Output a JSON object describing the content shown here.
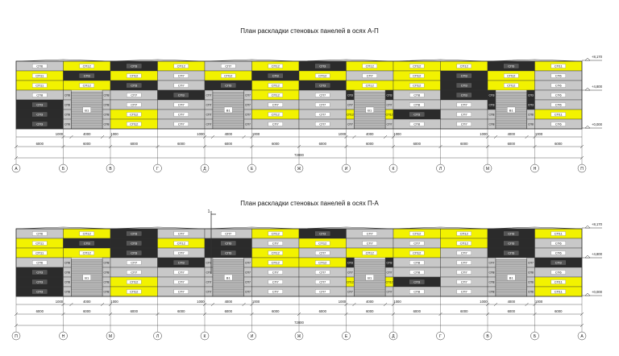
{
  "titles": {
    "top": "План раскладки стеновых панелей в осях А-П",
    "bottom": "План раскладки стеновых панелей в осях П-А"
  },
  "elevation_marks": [
    "+8,170",
    "+4,800",
    "+0,000"
  ],
  "total_length": "72000",
  "axes_top": [
    "А",
    "Б",
    "В",
    "Г",
    "Д",
    "Е",
    "Ж",
    "И",
    "К",
    "Л",
    "М",
    "Н",
    "П"
  ],
  "axes_bottom": [
    "П",
    "Н",
    "М",
    "Л",
    "К",
    "И",
    "Ж",
    "Е",
    "Д",
    "Г",
    "В",
    "Б",
    "А"
  ],
  "bay_dims": [
    "6000",
    "6000",
    "6000",
    "6000",
    "6000",
    "6000",
    "6000",
    "6000",
    "6000",
    "6000",
    "6000",
    "6000"
  ],
  "sub_dims": [
    "1000",
    "4000",
    "1000"
  ],
  "door_label": "В1",
  "section_mark": "1",
  "colors": {
    "yellow": "#f2f200",
    "black": "#2b2b2b",
    "gray": "#c8c8c8",
    "light": "#e6e6e6",
    "door": "#bdbdbd",
    "line": "#333333"
  },
  "top_upper_rows": [
    [
      {
        "t": "СП6",
        "c": "gray"
      },
      {
        "t": "СП12",
        "c": "yellow"
      },
      {
        "t": "СП3",
        "c": "black"
      },
      {
        "t": "СП12",
        "c": "yellow"
      },
      {
        "t": "СП7",
        "c": "gray"
      },
      {
        "t": "СП12",
        "c": "yellow"
      },
      {
        "t": "СП3",
        "c": "black"
      },
      {
        "t": "СП12",
        "c": "yellow"
      },
      {
        "t": "СП12",
        "c": "yellow"
      },
      {
        "t": "СП12",
        "c": "yellow"
      },
      {
        "t": "СП3",
        "c": "black"
      },
      {
        "t": "СП11",
        "c": "yellow"
      }
    ],
    [
      {
        "t": "СП11",
        "c": "yellow"
      },
      {
        "t": "СП3",
        "c": "black"
      },
      {
        "t": "СП12",
        "c": "yellow"
      },
      {
        "t": "СП7",
        "c": "gray"
      },
      {
        "t": "СП12",
        "c": "yellow"
      },
      {
        "t": "СП3",
        "c": "black"
      },
      {
        "t": "СП12",
        "c": "yellow"
      },
      {
        "t": "СП7",
        "c": "gray"
      },
      {
        "t": "СП12",
        "c": "yellow"
      },
      {
        "t": "СП3",
        "c": "black"
      },
      {
        "t": "СП12",
        "c": "yellow"
      },
      {
        "t": "СП6",
        "c": "gray"
      }
    ],
    [
      {
        "t": "СП11",
        "c": "yellow"
      },
      {
        "t": "СП12",
        "c": "yellow"
      },
      {
        "t": "СП3",
        "c": "black"
      },
      {
        "t": "СП7",
        "c": "gray"
      },
      {
        "t": "СП3",
        "c": "black"
      },
      {
        "t": "СП12",
        "c": "yellow"
      },
      {
        "t": "СП3",
        "c": "black"
      },
      {
        "t": "СП12",
        "c": "yellow"
      },
      {
        "t": "СП12",
        "c": "yellow"
      },
      {
        "t": "СП3",
        "c": "black"
      },
      {
        "t": "СП12",
        "c": "yellow"
      },
      {
        "t": "СП6",
        "c": "gray"
      }
    ]
  ],
  "top_lower_rows": [
    [
      {
        "t": "СП8",
        "c": "gray"
      },
      {
        "t": "СП8",
        "c": "gray"
      },
      {
        "t": "СП7",
        "c": "gray"
      },
      {
        "t": "СП3",
        "c": "black"
      },
      {
        "t": "СП7",
        "c": "gray"
      },
      {
        "t": "СП12",
        "c": "yellow"
      },
      {
        "t": "СП7",
        "c": "gray"
      },
      {
        "t": "СП3",
        "c": "black"
      },
      {
        "t": "СП8",
        "c": "gray"
      },
      {
        "t": "СП3",
        "c": "black"
      },
      {
        "t": "СП3",
        "c": "black"
      },
      {
        "t": "СП6",
        "c": "gray"
      }
    ],
    [
      {
        "t": "СП3",
        "c": "black"
      },
      {
        "t": "СП8",
        "c": "gray"
      },
      {
        "t": "СП7",
        "c": "gray"
      },
      {
        "t": "СП7",
        "c": "gray"
      },
      {
        "t": "СП7",
        "c": "gray"
      },
      {
        "t": "СП7",
        "c": "gray"
      },
      {
        "t": "СП7",
        "c": "gray"
      },
      {
        "t": "СП7",
        "c": "gray"
      },
      {
        "t": "СП8",
        "c": "gray"
      },
      {
        "t": "СП7",
        "c": "gray"
      },
      {
        "t": "СП3",
        "c": "black"
      },
      {
        "t": "СП6",
        "c": "gray"
      }
    ],
    [
      {
        "t": "СП3",
        "c": "black"
      },
      {
        "t": "СП8",
        "c": "gray"
      },
      {
        "t": "СП12",
        "c": "yellow"
      },
      {
        "t": "СП7",
        "c": "gray"
      },
      {
        "t": "СП7",
        "c": "gray"
      },
      {
        "t": "СП12",
        "c": "yellow"
      },
      {
        "t": "СП7",
        "c": "gray"
      },
      {
        "t": "СП12",
        "c": "yellow"
      },
      {
        "t": "СП3",
        "c": "black"
      },
      {
        "t": "СП7",
        "c": "gray"
      },
      {
        "t": "СП8",
        "c": "gray"
      },
      {
        "t": "СП11",
        "c": "yellow"
      }
    ],
    [
      {
        "t": "СП3",
        "c": "black"
      },
      {
        "t": "СП8",
        "c": "gray"
      },
      {
        "t": "СП12",
        "c": "yellow"
      },
      {
        "t": "СП7",
        "c": "gray"
      },
      {
        "t": "СП7",
        "c": "gray"
      },
      {
        "t": "СП7",
        "c": "gray"
      },
      {
        "t": "СП7",
        "c": "gray"
      },
      {
        "t": "СП7",
        "c": "gray"
      },
      {
        "t": "СП8",
        "c": "gray"
      },
      {
        "t": "СП7",
        "c": "gray"
      },
      {
        "t": "СП8",
        "c": "gray"
      },
      {
        "t": "СП6",
        "c": "gray"
      }
    ]
  ],
  "top_doors": [
    1,
    4,
    7,
    10
  ],
  "bottom_upper_rows": [
    [
      {
        "t": "СП6",
        "c": "gray"
      },
      {
        "t": "СП12",
        "c": "yellow"
      },
      {
        "t": "СП3",
        "c": "black"
      },
      {
        "t": "СП7",
        "c": "gray"
      },
      {
        "t": "СП7",
        "c": "gray"
      },
      {
        "t": "СП12",
        "c": "yellow"
      },
      {
        "t": "СП3",
        "c": "black"
      },
      {
        "t": "СП7",
        "c": "gray"
      },
      {
        "t": "СП12",
        "c": "yellow"
      },
      {
        "t": "СП12",
        "c": "yellow"
      },
      {
        "t": "СП3",
        "c": "black"
      },
      {
        "t": "СП11",
        "c": "yellow"
      }
    ],
    [
      {
        "t": "СП11",
        "c": "yellow"
      },
      {
        "t": "СП3",
        "c": "black"
      },
      {
        "t": "СП3",
        "c": "black"
      },
      {
        "t": "СП12",
        "c": "yellow"
      },
      {
        "t": "СП3",
        "c": "black"
      },
      {
        "t": "СП7",
        "c": "gray"
      },
      {
        "t": "СП12",
        "c": "yellow"
      },
      {
        "t": "СП7",
        "c": "gray"
      },
      {
        "t": "СП7",
        "c": "gray"
      },
      {
        "t": "СП12",
        "c": "yellow"
      },
      {
        "t": "СП3",
        "c": "black"
      },
      {
        "t": "СП6",
        "c": "gray"
      }
    ],
    [
      {
        "t": "СП11",
        "c": "yellow"
      },
      {
        "t": "СП12",
        "c": "yellow"
      },
      {
        "t": "СП3",
        "c": "black"
      },
      {
        "t": "СП7",
        "c": "gray"
      },
      {
        "t": "СП3",
        "c": "black"
      },
      {
        "t": "СП12",
        "c": "yellow"
      },
      {
        "t": "СП7",
        "c": "gray"
      },
      {
        "t": "СП12",
        "c": "yellow"
      },
      {
        "t": "СП12",
        "c": "yellow"
      },
      {
        "t": "СП7",
        "c": "gray"
      },
      {
        "t": "СП3",
        "c": "black"
      },
      {
        "t": "СП6",
        "c": "gray"
      }
    ]
  ],
  "bottom_lower_rows": [
    [
      {
        "t": "СП6",
        "c": "gray"
      },
      {
        "t": "СП8",
        "c": "gray"
      },
      {
        "t": "СП7",
        "c": "gray"
      },
      {
        "t": "СП3",
        "c": "black"
      },
      {
        "t": "СП7",
        "c": "gray"
      },
      {
        "t": "СП12",
        "c": "yellow"
      },
      {
        "t": "СП12",
        "c": "yellow"
      },
      {
        "t": "СП3",
        "c": "black"
      },
      {
        "t": "СП8",
        "c": "gray"
      },
      {
        "t": "СП7",
        "c": "gray"
      },
      {
        "t": "СП7",
        "c": "gray"
      },
      {
        "t": "СП3",
        "c": "black"
      }
    ],
    [
      {
        "t": "СП3",
        "c": "black"
      },
      {
        "t": "СП8",
        "c": "gray"
      },
      {
        "t": "СП7",
        "c": "gray"
      },
      {
        "t": "СП7",
        "c": "gray"
      },
      {
        "t": "СП7",
        "c": "gray"
      },
      {
        "t": "СП7",
        "c": "gray"
      },
      {
        "t": "СП7",
        "c": "gray"
      },
      {
        "t": "СП7",
        "c": "gray"
      },
      {
        "t": "СП8",
        "c": "gray"
      },
      {
        "t": "СП7",
        "c": "gray"
      },
      {
        "t": "СП8",
        "c": "gray"
      },
      {
        "t": "СП6",
        "c": "gray"
      }
    ],
    [
      {
        "t": "СП3",
        "c": "black"
      },
      {
        "t": "СП8",
        "c": "gray"
      },
      {
        "t": "СП12",
        "c": "yellow"
      },
      {
        "t": "СП7",
        "c": "gray"
      },
      {
        "t": "СП7",
        "c": "gray"
      },
      {
        "t": "СП7",
        "c": "gray"
      },
      {
        "t": "СП7",
        "c": "gray"
      },
      {
        "t": "СП12",
        "c": "yellow"
      },
      {
        "t": "СП3",
        "c": "black"
      },
      {
        "t": "СП7",
        "c": "gray"
      },
      {
        "t": "СП8",
        "c": "gray"
      },
      {
        "t": "СП11",
        "c": "yellow"
      }
    ],
    [
      {
        "t": "СП3",
        "c": "black"
      },
      {
        "t": "СП8",
        "c": "gray"
      },
      {
        "t": "СП12",
        "c": "yellow"
      },
      {
        "t": "СП7",
        "c": "gray"
      },
      {
        "t": "СП7",
        "c": "gray"
      },
      {
        "t": "СП7",
        "c": "gray"
      },
      {
        "t": "СП7",
        "c": "gray"
      },
      {
        "t": "СП7",
        "c": "gray"
      },
      {
        "t": "СП8",
        "c": "gray"
      },
      {
        "t": "СП7",
        "c": "gray"
      },
      {
        "t": "СП8",
        "c": "gray"
      },
      {
        "t": "СП11",
        "c": "yellow"
      }
    ]
  ],
  "bottom_doors": [
    1,
    4,
    7,
    10
  ]
}
